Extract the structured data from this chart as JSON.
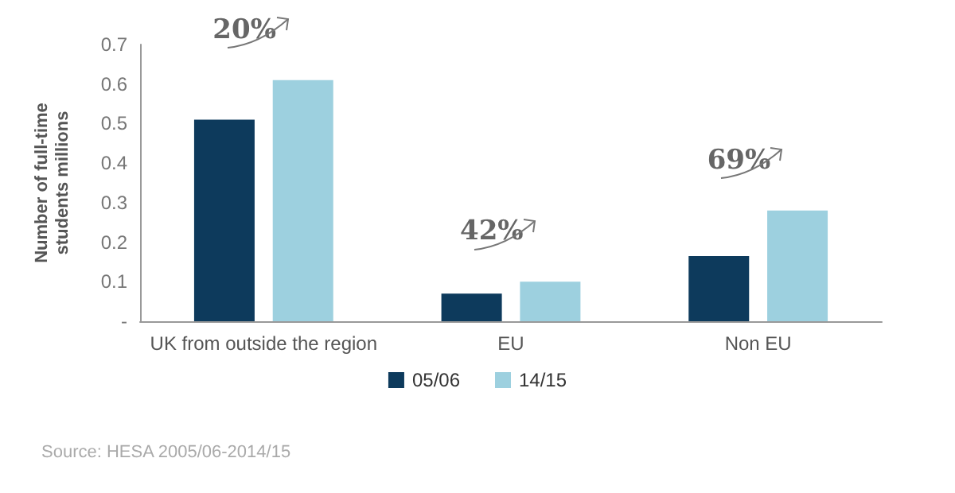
{
  "chart_data": {
    "type": "bar",
    "ylabel": "Number of full-time\nstudents millions",
    "categories": [
      "UK from outside the region",
      "EU",
      "Non EU"
    ],
    "series": [
      {
        "name": "05/06",
        "color": "#0d3a5c",
        "values": [
          0.51,
          0.07,
          0.165
        ]
      },
      {
        "name": "14/15",
        "color": "#9dd0df",
        "values": [
          0.61,
          0.1,
          0.28
        ]
      }
    ],
    "ylim": [
      0,
      0.7
    ],
    "yticks": [
      {
        "value": 0,
        "label": "-"
      },
      0.1,
      0.2,
      0.3,
      0.4,
      0.5,
      0.6,
      0.7
    ],
    "grid": false,
    "legend": "bottom",
    "annotations": [
      "20%",
      "42%",
      "69%",
      "Source: HESA 2005/06-2014/15"
    ]
  }
}
